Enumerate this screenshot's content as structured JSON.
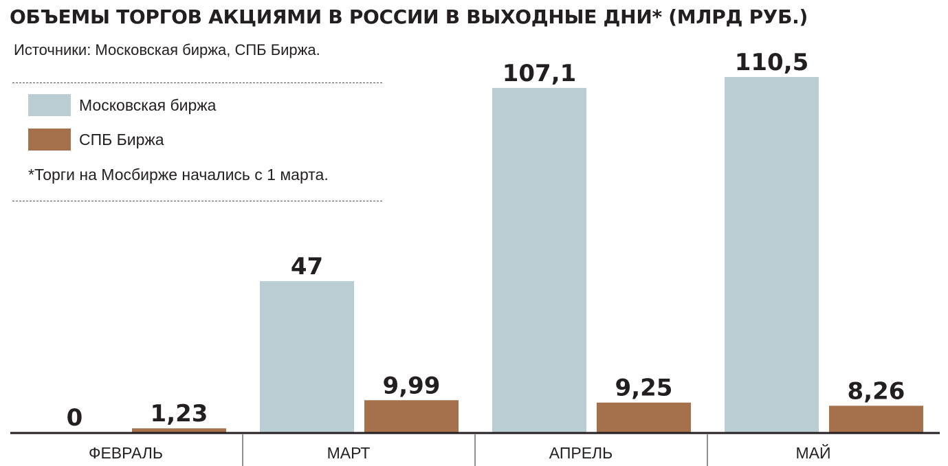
{
  "title": "ОБЪЕМЫ ТОРГОВ АКЦИЯМИ В РОССИИ В ВЫХОДНЫЕ ДНИ* (МЛРД РУБ.)",
  "sources": "Источники: Московская биржа, СПБ Биржа.",
  "note": "*Торги на Мосбирже начались с 1 марта.",
  "colors": {
    "moex": "#b9cdd2",
    "spb": "#a5714d",
    "axis": "#231f20"
  },
  "chart_data": {
    "type": "bar",
    "title": "ОБЪЕМЫ ТОРГОВ АКЦИЯМИ В РОССИИ В ВЫХОДНЫЕ ДНИ* (МЛРД РУБ.)",
    "categories": [
      "ФЕВРАЛЬ",
      "МАРТ",
      "АПРЕЛЬ",
      "МАЙ"
    ],
    "series": [
      {
        "name": "Московская биржа",
        "values": [
          0,
          47,
          107.1,
          110.5
        ],
        "labels": [
          "0",
          "47",
          "107,1",
          "110,5"
        ]
      },
      {
        "name": "СПБ Биржа",
        "values": [
          1.23,
          9.99,
          9.25,
          8.26
        ],
        "labels": [
          "1,23",
          "9,99",
          "9,25",
          "8,26"
        ]
      }
    ],
    "xlabel": "",
    "ylabel": "",
    "ylim": [
      0,
      110.5
    ],
    "grid": false,
    "legend": "top-left"
  }
}
